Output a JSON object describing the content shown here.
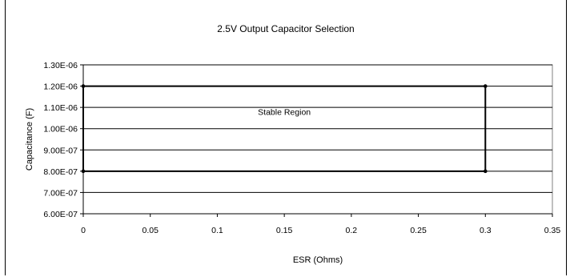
{
  "chart_data": {
    "type": "scatter",
    "title": "2.5V Output Capacitor Selection",
    "xlabel": "ESR (Ohms)",
    "ylabel": "Capacitance (F)",
    "xlim": [
      0,
      0.35
    ],
    "ylim": [
      6e-07,
      1.3e-06
    ],
    "x_ticks": [
      0,
      0.05,
      0.1,
      0.15,
      0.2,
      0.25,
      0.3,
      0.35
    ],
    "x_tick_labels": [
      "0",
      "0.05",
      "0.1",
      "0.15",
      "0.2",
      "0.25",
      "0.3",
      "0.35"
    ],
    "y_ticks": [
      6e-07,
      7e-07,
      8e-07,
      9e-07,
      1e-06,
      1.1e-06,
      1.2e-06,
      1.3e-06
    ],
    "y_tick_labels": [
      "6.00E-07",
      "7.00E-07",
      "8.00E-07",
      "9.00E-07",
      "1.00E-06",
      "1.10E-06",
      "1.20E-06",
      "1.30E-06"
    ],
    "grid": "horizontal",
    "legend": "none",
    "series": [
      {
        "x": [
          0,
          0.3,
          0.3,
          0,
          0
        ],
        "y": [
          1.2e-06,
          1.2e-06,
          8e-07,
          8e-07,
          1.2e-06
        ],
        "color": "#000000"
      }
    ],
    "annotations": [
      {
        "text": "Stable Region",
        "x": 0.15,
        "y": 1.05e-06
      }
    ]
  }
}
